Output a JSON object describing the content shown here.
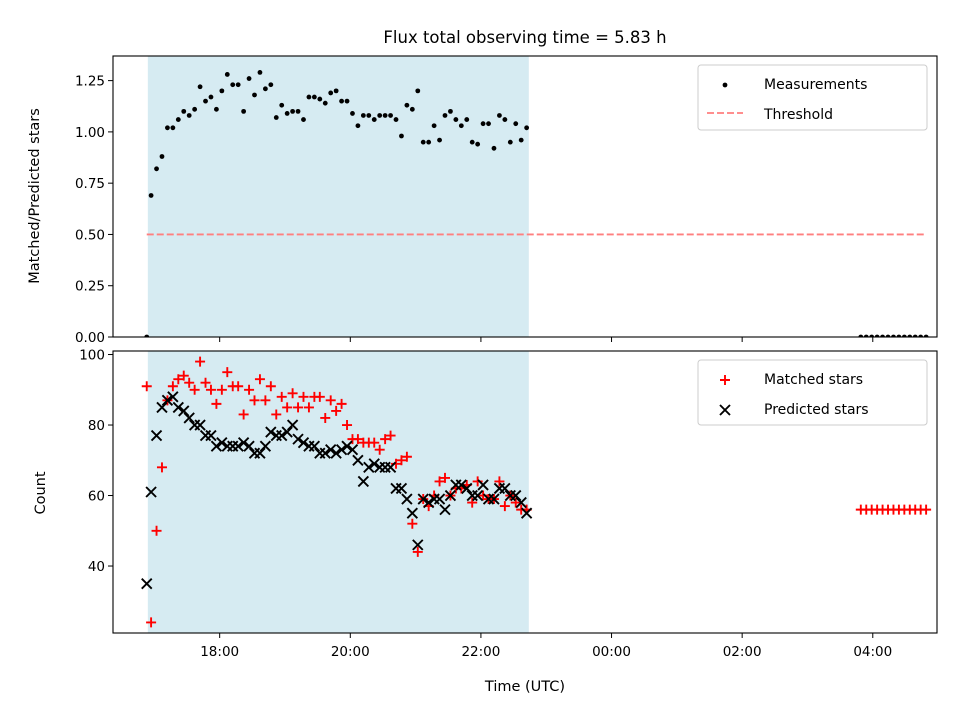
{
  "chart_data": [
    {
      "type": "scatter",
      "title": "Flux total observing time = 5.83 h",
      "xlabel": "",
      "ylabel": "Matched/Predicted stars",
      "xlim": [
        "16:22",
        "04:59"
      ],
      "ylim": [
        0,
        1.37
      ],
      "yticks": [
        "0.00",
        "0.25",
        "0.50",
        "0.75",
        "1.00",
        "1.25"
      ],
      "xticks": [
        "18:00",
        "20:00",
        "22:00",
        "00:00",
        "02:00",
        "04:00"
      ],
      "shaded_span": [
        "16:54",
        "22:44"
      ],
      "shaded_color": "#add8e6",
      "legend_position": "upper right",
      "legend": [
        "Measurements",
        "Threshold"
      ],
      "series": [
        {
          "name": "Measurements",
          "marker": "dot",
          "color": "#000000",
          "x": [
            "16:53",
            "16:57",
            "17:02",
            "17:07",
            "17:12",
            "17:17",
            "17:22",
            "17:27",
            "17:32",
            "17:37",
            "17:42",
            "17:47",
            "17:52",
            "17:57",
            "18:02",
            "18:07",
            "18:12",
            "18:17",
            "18:22",
            "18:27",
            "18:32",
            "18:37",
            "18:42",
            "18:47",
            "18:52",
            "18:57",
            "19:02",
            "19:07",
            "19:12",
            "19:17",
            "19:22",
            "19:27",
            "19:32",
            "19:37",
            "19:42",
            "19:47",
            "19:52",
            "19:57",
            "20:02",
            "20:07",
            "20:12",
            "20:17",
            "20:22",
            "20:27",
            "20:32",
            "20:37",
            "20:42",
            "20:47",
            "20:52",
            "20:57",
            "21:02",
            "21:07",
            "21:12",
            "21:17",
            "21:22",
            "21:27",
            "21:32",
            "21:37",
            "21:42",
            "21:47",
            "21:52",
            "21:57",
            "22:02",
            "22:07",
            "22:12",
            "22:17",
            "22:22",
            "22:27",
            "22:32",
            "22:37",
            "22:42",
            "03:49",
            "03:54",
            "03:59",
            "04:04",
            "04:09",
            "04:14",
            "04:19",
            "04:24",
            "04:29",
            "04:34",
            "04:39",
            "04:44",
            "04:49"
          ],
          "y": [
            0.0,
            0.69,
            0.82,
            0.88,
            1.02,
            1.02,
            1.06,
            1.1,
            1.08,
            1.11,
            1.22,
            1.15,
            1.17,
            1.11,
            1.2,
            1.28,
            1.23,
            1.23,
            1.1,
            1.26,
            1.18,
            1.29,
            1.21,
            1.23,
            1.07,
            1.13,
            1.09,
            1.1,
            1.1,
            1.06,
            1.17,
            1.17,
            1.16,
            1.14,
            1.19,
            1.2,
            1.15,
            1.15,
            1.09,
            1.03,
            1.08,
            1.08,
            1.06,
            1.08,
            1.08,
            1.08,
            1.06,
            0.98,
            1.13,
            1.11,
            1.2,
            0.95,
            0.95,
            1.03,
            0.96,
            1.08,
            1.1,
            1.06,
            1.03,
            1.06,
            0.95,
            0.94,
            1.04,
            1.04,
            0.92,
            1.08,
            1.06,
            0.95,
            1.04,
            0.96,
            1.02,
            0.0,
            0.0,
            0.0,
            0.0,
            0.0,
            0.0,
            0.0,
            0.0,
            0.0,
            0.0,
            0.0,
            0.0,
            0.0
          ]
        },
        {
          "name": "Threshold",
          "style": "dashed",
          "color": "#ff7f7f",
          "x": [
            "16:53",
            "04:49"
          ],
          "y": [
            0.5,
            0.5
          ]
        }
      ]
    },
    {
      "type": "scatter",
      "title": "",
      "xlabel": "Time (UTC)",
      "ylabel": "Count",
      "xlim": [
        "16:22",
        "04:59"
      ],
      "ylim": [
        21,
        101
      ],
      "yticks": [
        "40",
        "60",
        "80",
        "100"
      ],
      "xticks": [
        "18:00",
        "20:00",
        "22:00",
        "00:00",
        "02:00",
        "04:00"
      ],
      "shaded_span": [
        "16:54",
        "22:44"
      ],
      "shaded_color": "#add8e6",
      "legend_position": "upper right",
      "legend": [
        "Matched stars",
        "Predicted stars"
      ],
      "series": [
        {
          "name": "Matched stars",
          "marker": "plus",
          "color": "#ff0000",
          "x": [
            "16:53",
            "16:57",
            "17:02",
            "17:07",
            "17:12",
            "17:17",
            "17:22",
            "17:27",
            "17:32",
            "17:37",
            "17:42",
            "17:47",
            "17:52",
            "17:57",
            "18:02",
            "18:07",
            "18:12",
            "18:17",
            "18:22",
            "18:27",
            "18:32",
            "18:37",
            "18:42",
            "18:47",
            "18:52",
            "18:57",
            "19:02",
            "19:07",
            "19:12",
            "19:17",
            "19:22",
            "19:27",
            "19:32",
            "19:37",
            "19:42",
            "19:47",
            "19:52",
            "19:57",
            "20:02",
            "20:07",
            "20:12",
            "20:17",
            "20:22",
            "20:27",
            "20:32",
            "20:37",
            "20:42",
            "20:47",
            "20:52",
            "20:57",
            "21:02",
            "21:07",
            "21:12",
            "21:17",
            "21:22",
            "21:27",
            "21:32",
            "21:37",
            "21:42",
            "21:47",
            "21:52",
            "21:57",
            "22:02",
            "22:07",
            "22:12",
            "22:17",
            "22:22",
            "22:27",
            "22:32",
            "22:37",
            "22:42",
            "03:49",
            "03:54",
            "03:59",
            "04:04",
            "04:09",
            "04:14",
            "04:19",
            "04:24",
            "04:29",
            "04:34",
            "04:39",
            "04:44",
            "04:49"
          ],
          "y": [
            91,
            24,
            50,
            68,
            87,
            91,
            93,
            94,
            92,
            90,
            98,
            92,
            90,
            86,
            90,
            95,
            91,
            91,
            83,
            90,
            87,
            93,
            87,
            91,
            83,
            88,
            85,
            89,
            85,
            88,
            85,
            88,
            88,
            82,
            87,
            84,
            86,
            80,
            76,
            76,
            75,
            75,
            75,
            73,
            76,
            77,
            69,
            70,
            71,
            52,
            44,
            59,
            57,
            60,
            64,
            65,
            60,
            62,
            62,
            63,
            58,
            64,
            60,
            59,
            59,
            64,
            57,
            60,
            58,
            56,
            56,
            56,
            56,
            56,
            56,
            56,
            56,
            56,
            56,
            56,
            56,
            56,
            56,
            56
          ]
        },
        {
          "name": "Predicted stars",
          "marker": "x",
          "color": "#000000",
          "x": [
            "16:53",
            "16:57",
            "17:02",
            "17:07",
            "17:12",
            "17:17",
            "17:22",
            "17:27",
            "17:32",
            "17:37",
            "17:42",
            "17:47",
            "17:52",
            "17:57",
            "18:02",
            "18:07",
            "18:12",
            "18:17",
            "18:22",
            "18:27",
            "18:32",
            "18:37",
            "18:42",
            "18:47",
            "18:52",
            "18:57",
            "19:02",
            "19:07",
            "19:12",
            "19:17",
            "19:22",
            "19:27",
            "19:32",
            "19:37",
            "19:42",
            "19:47",
            "19:52",
            "19:57",
            "20:02",
            "20:07",
            "20:12",
            "20:17",
            "20:22",
            "20:27",
            "20:32",
            "20:37",
            "20:42",
            "20:47",
            "20:52",
            "20:57",
            "21:02",
            "21:07",
            "21:12",
            "21:17",
            "21:22",
            "21:27",
            "21:32",
            "21:37",
            "21:42",
            "21:47",
            "21:52",
            "21:57",
            "22:02",
            "22:07",
            "22:12",
            "22:17",
            "22:22",
            "22:27",
            "22:32",
            "22:37",
            "22:42"
          ],
          "y": [
            35,
            61,
            77,
            85,
            87,
            88,
            85,
            84,
            82,
            80,
            80,
            77,
            77,
            74,
            75,
            74,
            74,
            74,
            75,
            74,
            72,
            72,
            74,
            78,
            77,
            77,
            78,
            80,
            76,
            75,
            74,
            74,
            72,
            72,
            73,
            72,
            73,
            74,
            73,
            70,
            64,
            68,
            69,
            68,
            68,
            68,
            62,
            62,
            59,
            55,
            46,
            59,
            58,
            59,
            59,
            56,
            60,
            63,
            63,
            62,
            60,
            60,
            63,
            59,
            59,
            62,
            62,
            60,
            60,
            58,
            55
          ]
        }
      ]
    }
  ]
}
